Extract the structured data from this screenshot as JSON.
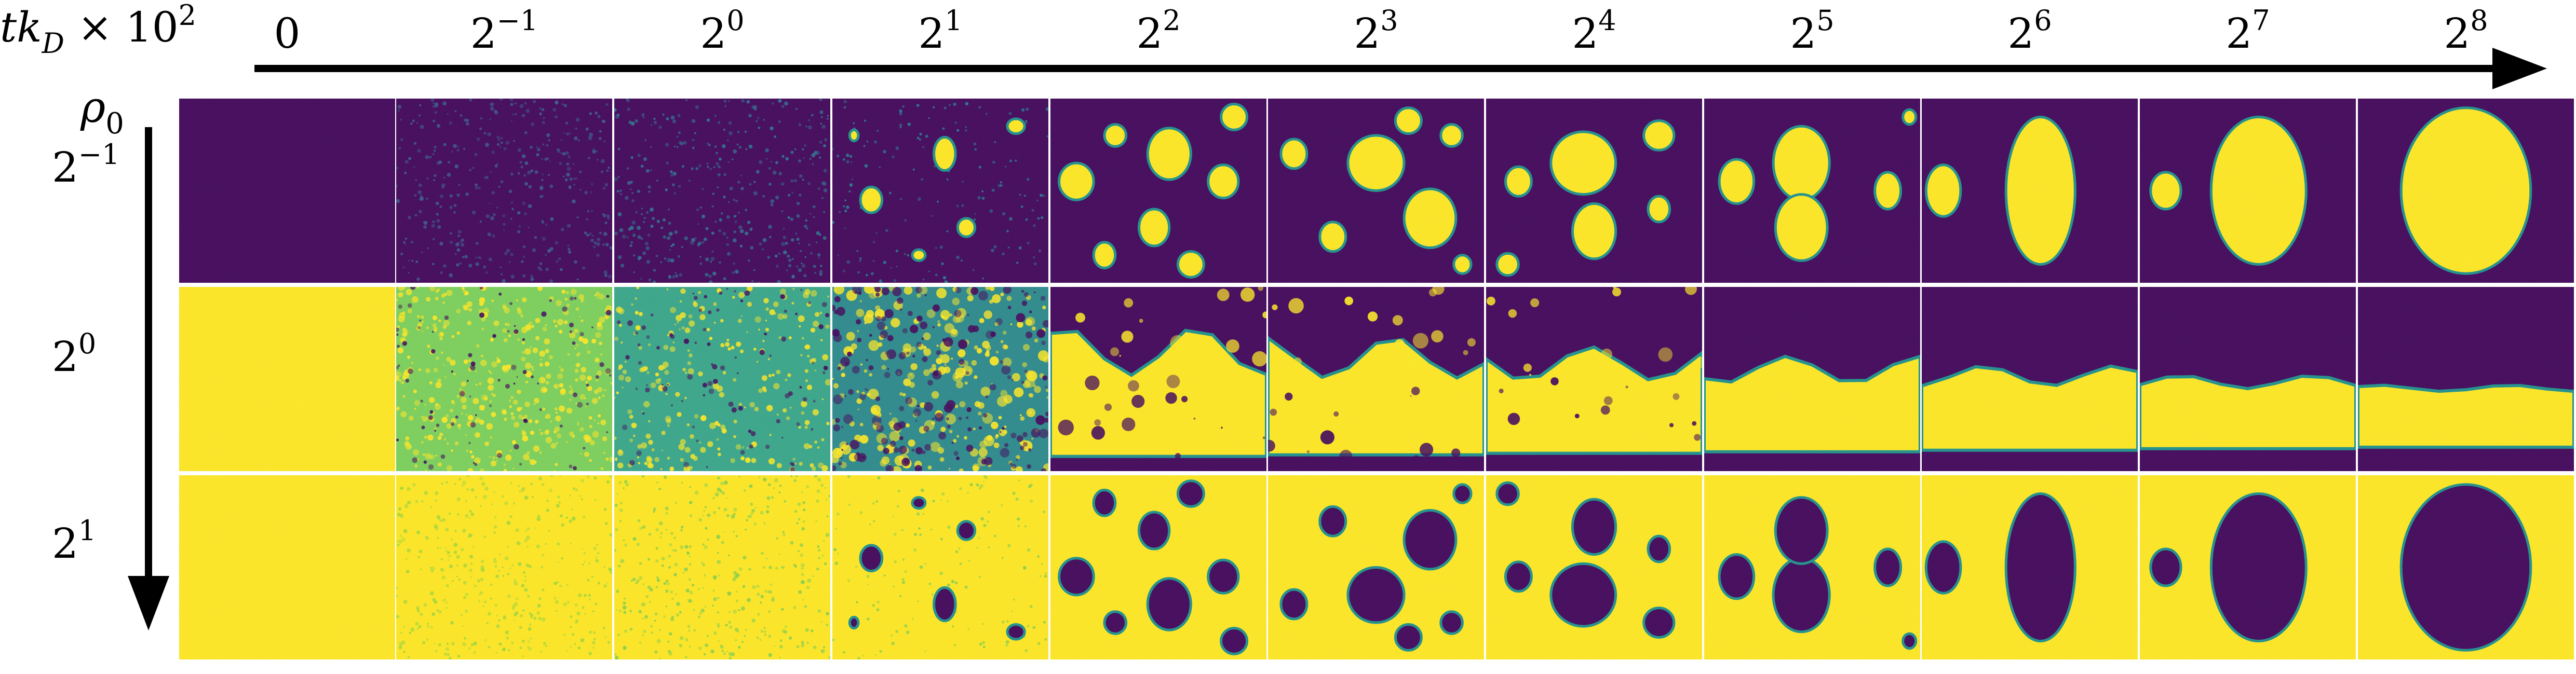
{
  "time_axis": {
    "label": {
      "main": "tk",
      "sub": "D",
      "times": " × 10",
      "sup": "2"
    },
    "ticks": [
      {
        "base": "0",
        "exp": ""
      },
      {
        "base": "2",
        "exp": "−1"
      },
      {
        "base": "2",
        "exp": "0"
      },
      {
        "base": "2",
        "exp": "1"
      },
      {
        "base": "2",
        "exp": "2"
      },
      {
        "base": "2",
        "exp": "3"
      },
      {
        "base": "2",
        "exp": "4"
      },
      {
        "base": "2",
        "exp": "5"
      },
      {
        "base": "2",
        "exp": "6"
      },
      {
        "base": "2",
        "exp": "7"
      },
      {
        "base": "2",
        "exp": "8"
      }
    ]
  },
  "density_axis": {
    "label": {
      "main": "ρ",
      "sub": "0"
    },
    "ticks": [
      {
        "base": "2",
        "exp": "−1"
      },
      {
        "base": "2",
        "exp": "0"
      },
      {
        "base": "2",
        "exp": "1"
      }
    ]
  },
  "colors": {
    "low_phase": "#440a5c",
    "high_phase": "#fde725",
    "mixed_mid": "#2a9a8a",
    "interface": "#21918c",
    "arrow": "#000000",
    "separator": "#ffffff"
  }
}
